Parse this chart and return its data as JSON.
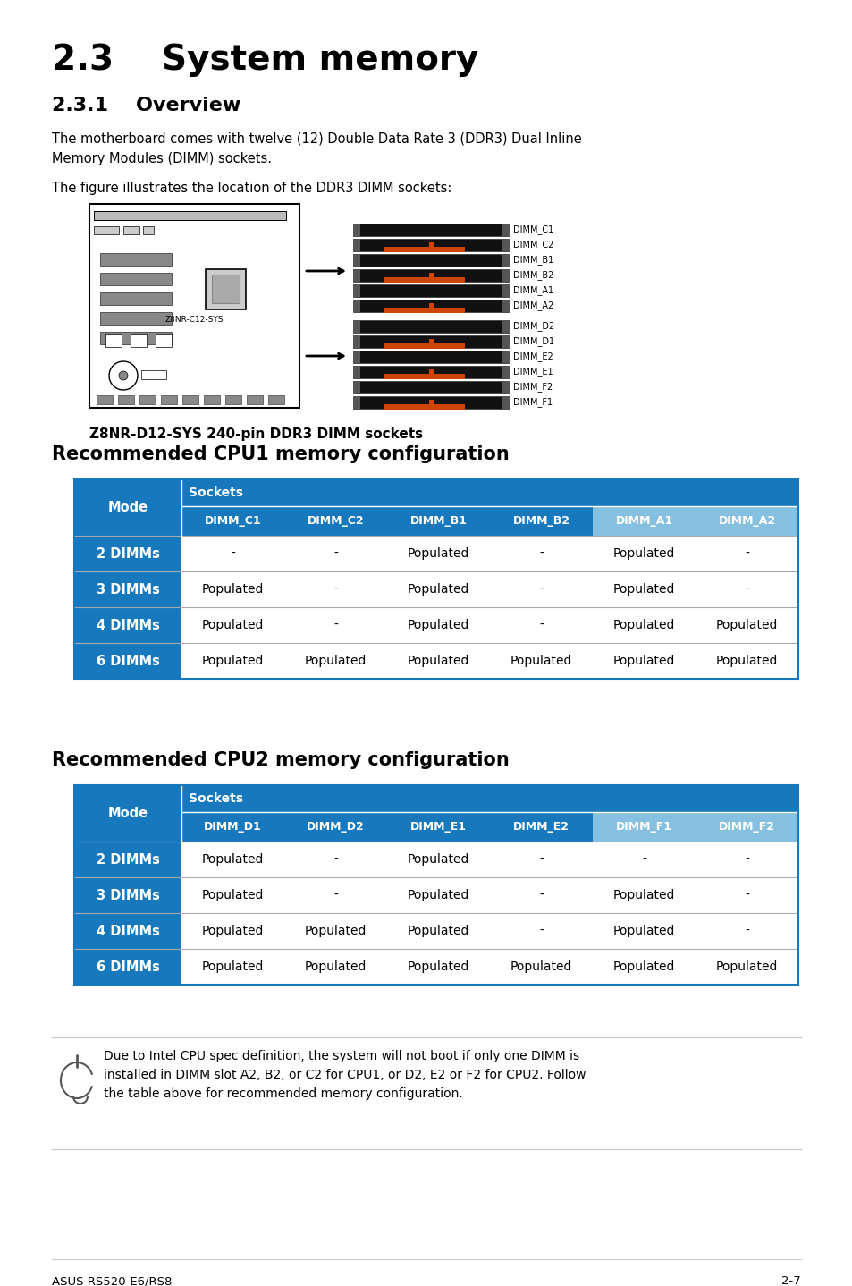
{
  "title": "2.3    System memory",
  "subtitle": "2.3.1    Overview",
  "body_text1": "The motherboard comes with twelve (12) Double Data Rate 3 (DDR3) Dual Inline\nMemory Modules (DIMM) sockets.",
  "body_text2": "The figure illustrates the location of the DDR3 DIMM sockets:",
  "diagram_caption": "Z8NR-D12-SYS 240-pin DDR3 DIMM sockets",
  "cpu1_table_title": "Recommended CPU1 memory configuration",
  "cpu2_table_title": "Recommended CPU2 memory configuration",
  "cpu1_headers": [
    "DIMM_C1",
    "DIMM_C2",
    "DIMM_B1",
    "DIMM_B2",
    "DIMM_A1",
    "DIMM_A2"
  ],
  "cpu2_headers": [
    "DIMM_D1",
    "DIMM_D2",
    "DIMM_E1",
    "DIMM_E2",
    "DIMM_F1",
    "DIMM_F2"
  ],
  "row_labels": [
    "2 DIMMs",
    "3 DIMMs",
    "4 DIMMs",
    "6 DIMMs"
  ],
  "cpu1_data": [
    [
      "-",
      "-",
      "Populated",
      "-",
      "Populated",
      "-"
    ],
    [
      "Populated",
      "-",
      "Populated",
      "-",
      "Populated",
      "-"
    ],
    [
      "Populated",
      "-",
      "Populated",
      "-",
      "Populated",
      "Populated"
    ],
    [
      "Populated",
      "Populated",
      "Populated",
      "Populated",
      "Populated",
      "Populated"
    ]
  ],
  "cpu2_data": [
    [
      "Populated",
      "-",
      "Populated",
      "-",
      "-",
      "-"
    ],
    [
      "Populated",
      "-",
      "Populated",
      "-",
      "Populated",
      "-"
    ],
    [
      "Populated",
      "Populated",
      "Populated",
      "-",
      "Populated",
      "-"
    ],
    [
      "Populated",
      "Populated",
      "Populated",
      "Populated",
      "Populated",
      "Populated"
    ]
  ],
  "note_text": "Due to Intel CPU spec definition, the system will not boot if only one DIMM is\ninstalled in DIMM slot A2, B2, or C2 for CPU1, or D2, E2 or F2 for CPU2. Follow\nthe table above for recommended memory configuration.",
  "footer_left": "ASUS RS520-E6/RS8",
  "footer_right": "2-7",
  "bg_color": "#ffffff",
  "header_blue_dark": "#1878be",
  "header_blue_light": "#85c0e0",
  "row_label_color": "#1878be",
  "table_border_color": "#1878be",
  "dimm_top_labels": [
    "DIMM_C1",
    "DIMM_C2",
    "DIMM_B1",
    "DIMM_B2",
    "DIMM_A1",
    "DIMM_A2"
  ],
  "dimm_bot_labels": [
    "DIMM_D2",
    "DIMM_D1",
    "DIMM_E2",
    "DIMM_E1",
    "DIMM_F2",
    "DIMM_F1"
  ],
  "dimm_top_has_red": [
    false,
    true,
    false,
    true,
    false,
    true
  ],
  "dimm_bot_has_red": [
    false,
    true,
    false,
    true,
    false,
    true
  ]
}
